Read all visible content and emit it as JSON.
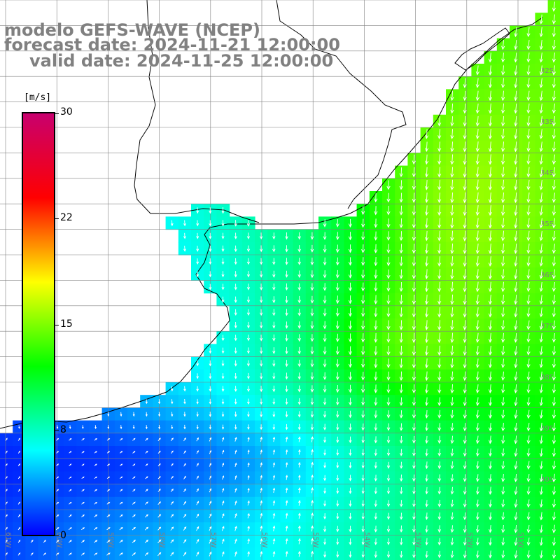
{
  "title": {
    "line1": "modelo GEFS-WAVE (NCEP)",
    "line2": "forecast date: 2024-11-21 12:00:00",
    "line3": "valid date: 2024-11-25 12:00:00"
  },
  "colorbar": {
    "unit": "[m/s]",
    "ticks": [
      {
        "value": 30,
        "label": "30"
      },
      {
        "value": 22,
        "label": "22"
      },
      {
        "value": 15,
        "label": "15"
      },
      {
        "value": 8,
        "label": "8"
      },
      {
        "value": 0,
        "label": "0"
      }
    ],
    "colors": [
      "#0000ff",
      "#00ffff",
      "#00ff00",
      "#ffff00",
      "#ff0000",
      "#c8006e"
    ]
  },
  "map": {
    "lat_labels": [
      "32S",
      "33S",
      "34S",
      "35S",
      "36S",
      "37S",
      "38S",
      "39S",
      "40S"
    ],
    "lon_labels": [
      "61W",
      "60W",
      "59W",
      "58W",
      "57W",
      "56W",
      "55W",
      "54W",
      "53W",
      "52W",
      "51W"
    ],
    "land_color": "#ffffff",
    "grid_color": "#808080",
    "label_color": "#808080"
  }
}
